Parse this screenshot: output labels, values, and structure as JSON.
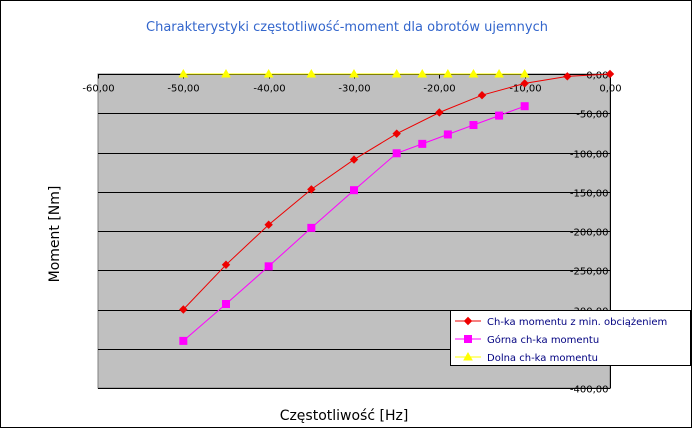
{
  "chart_data": {
    "type": "line",
    "title": "Charakterystyki częstotliwość-moment dla obrotów ujemnych",
    "xlabel": "Częstotliwość [Hz]",
    "ylabel": "Moment [Nm]",
    "xlim": [
      -60,
      0
    ],
    "ylim": [
      -400,
      0
    ],
    "x_ticks": [
      -60,
      -50,
      -40,
      -30,
      -20,
      -10,
      0
    ],
    "y_ticks": [
      0,
      -50,
      -100,
      -150,
      -200,
      -250,
      -300,
      -350,
      -400
    ],
    "x_tick_labels": [
      "-60,00",
      "-50,00",
      "-40,00",
      "-30,00",
      "-20,00",
      "-10,00",
      "0,00"
    ],
    "y_tick_labels": [
      "0,00",
      "-50,00",
      "-100,00",
      "-150,00",
      "-200,00",
      "-250,00",
      "-300,00",
      "-350,00",
      "-400,00"
    ],
    "grid": true,
    "plot_background": "#c0c0c0",
    "legend_position": "bottom-right",
    "series": [
      {
        "name": "Ch-ka momentu z min. obciążeniem",
        "color": "#ee0000",
        "marker": "diamond",
        "points": [
          [
            -50,
            -300
          ],
          [
            -45,
            -243
          ],
          [
            -40,
            -192
          ],
          [
            -35,
            -147
          ],
          [
            -30,
            -109
          ],
          [
            -25,
            -76
          ],
          [
            -20,
            -49
          ],
          [
            -15,
            -27
          ],
          [
            -10,
            -12
          ],
          [
            -5,
            -3
          ],
          [
            0,
            0
          ]
        ]
      },
      {
        "name": "Górna ch-ka momentu",
        "color": "#ff00ff",
        "marker": "square",
        "points": [
          [
            -50,
            -340
          ],
          [
            -45,
            -293
          ],
          [
            -40,
            -245
          ],
          [
            -35,
            -196
          ],
          [
            -30,
            -148
          ],
          [
            -25,
            -101
          ],
          [
            -22,
            -89
          ],
          [
            -19,
            -77
          ],
          [
            -16,
            -65
          ],
          [
            -13,
            -53
          ],
          [
            -10,
            -41
          ]
        ]
      },
      {
        "name": "Dolna ch-ka momentu",
        "color": "#ffff00",
        "marker": "triangle",
        "points": [
          [
            -50,
            0
          ],
          [
            -45,
            0
          ],
          [
            -40,
            0
          ],
          [
            -35,
            0
          ],
          [
            -30,
            0
          ],
          [
            -25,
            0
          ],
          [
            -22,
            0
          ],
          [
            -19,
            0
          ],
          [
            -16,
            0
          ],
          [
            -13,
            0
          ],
          [
            -10,
            0
          ]
        ]
      }
    ]
  }
}
